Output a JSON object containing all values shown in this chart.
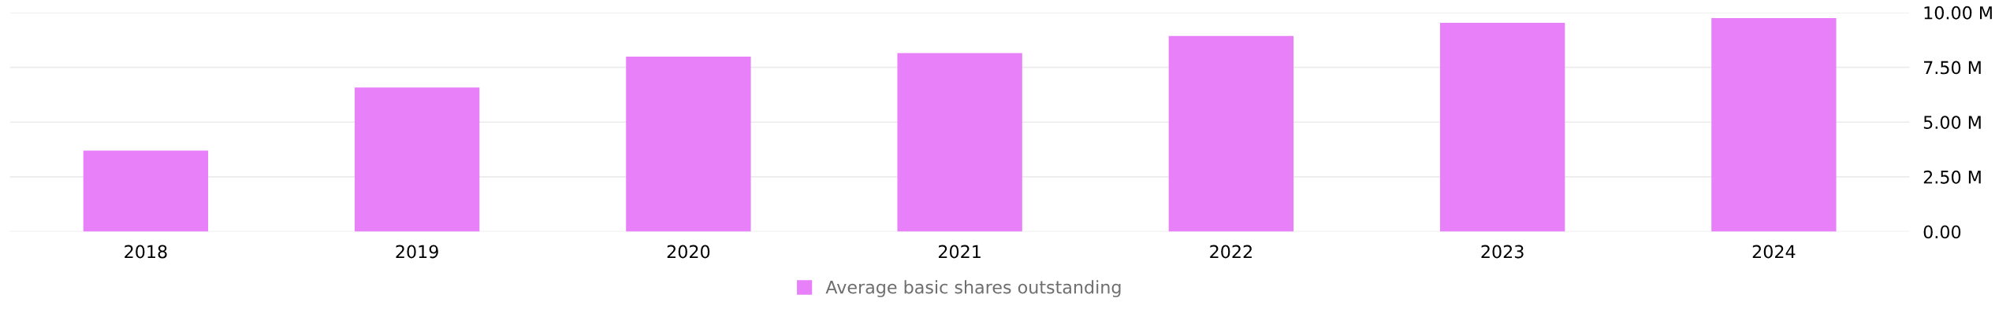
{
  "chart_data": {
    "type": "bar",
    "categories": [
      "2018",
      "2019",
      "2020",
      "2021",
      "2022",
      "2023",
      "2024"
    ],
    "series": [
      {
        "name": "Average basic shares outstanding",
        "color": "#e880fa",
        "values": [
          3.7,
          6.58,
          7.99,
          8.15,
          8.93,
          9.53,
          9.75
        ]
      }
    ],
    "ylim": [
      0,
      10
    ],
    "yticks": [
      {
        "value": 0,
        "label": "0.00"
      },
      {
        "value": 2.5,
        "label": "2.50 M"
      },
      {
        "value": 5,
        "label": "5.00 M"
      },
      {
        "value": 7.5,
        "label": "7.50 M"
      },
      {
        "value": 10,
        "label": "10.00 M"
      }
    ],
    "grid": "y",
    "legend": "bottom"
  }
}
